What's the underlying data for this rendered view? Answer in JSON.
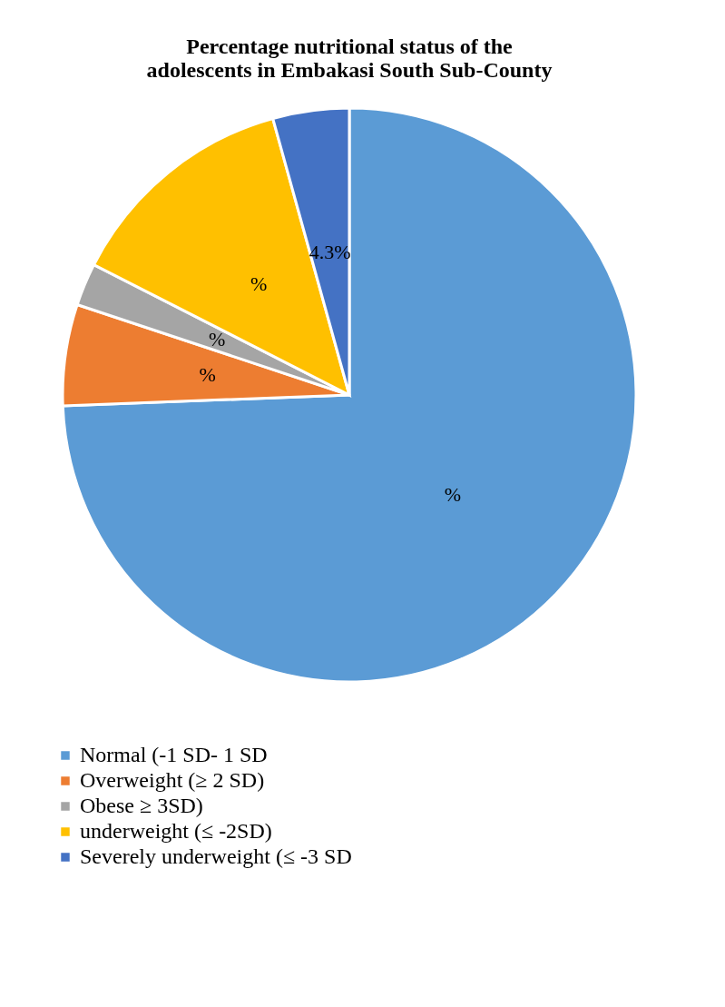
{
  "chart_data": {
    "type": "pie",
    "title": [
      "Percentage nutritional status of the",
      "adolescents in Embakasi South Sub-County"
    ],
    "categories": [
      "Normal  (-1 SD- 1 SD",
      "Overweight (≥ 2 SD)",
      "Obese ≥ 3SD)",
      "underweight (≤ -2SD)",
      "Severely underweight (≤ -3 SD"
    ],
    "values": [
      74.4,
      5.7,
      2.4,
      13.2,
      4.3
    ],
    "colors": [
      "#5b9bd5",
      "#ed7d31",
      "#a5a5a5",
      "#ffc000",
      "#4472c4"
    ],
    "value_labels": [
      "%",
      "%",
      "%",
      "%",
      "4.3%"
    ],
    "legend": "bottom"
  }
}
